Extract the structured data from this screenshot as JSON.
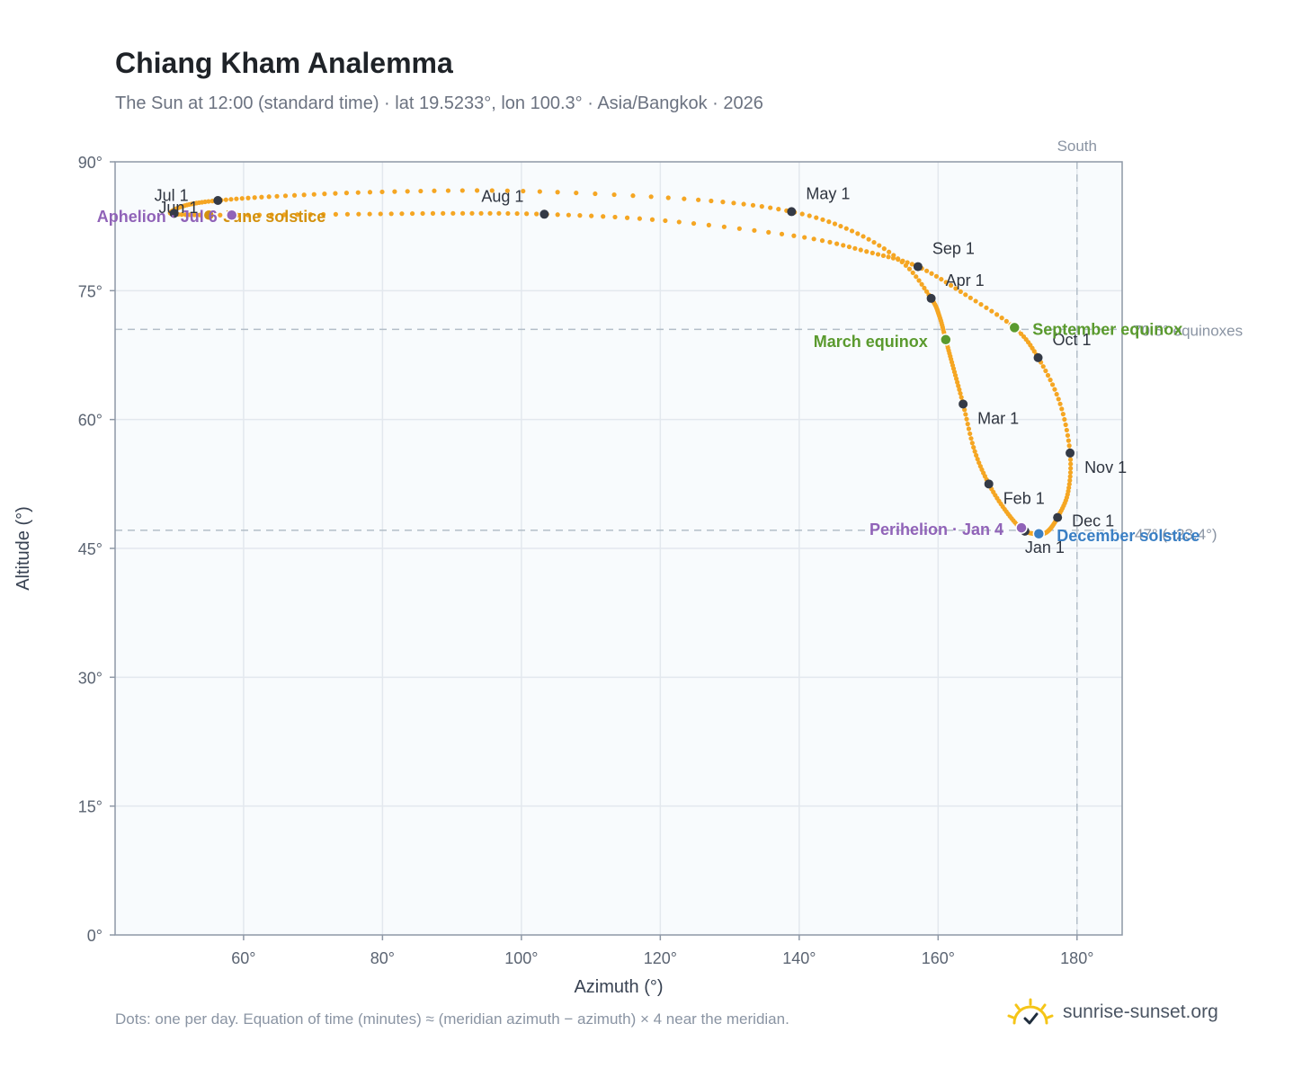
{
  "header": {
    "title": "Chiang Kham Analemma",
    "subtitle": "The Sun at 12:00 (standard time) · lat 19.5233°, lon 100.3° · Asia/Bangkok · 2026"
  },
  "footer": {
    "note": "Dots: one per day. Equation of time (minutes) ≈ (meridian azimuth − azimuth) × 4 near the meridian.",
    "brand": "sunrise-sunset.org",
    "logo_icon": "sun-logo-icon"
  },
  "colors": {
    "path": "#f5a623",
    "month_dot": "#343a46",
    "equinox": "#5a9a2e",
    "june_solstice": "#f5a623",
    "june_solstice_label": "#d4920f",
    "december_solstice": "#3a7fc4",
    "aphelion_perihelion": "#9063b8",
    "reference": "#b3bec8",
    "plot_bg": "#f8fbfd",
    "grid": "#e3e8ee",
    "axis": "#8e98a6"
  },
  "chart_data": {
    "type": "scatter",
    "title": "Chiang Kham Analemma",
    "subtitle": "The Sun at 12:00 (standard time) · lat 19.5233°, lon 100.3° · Asia/Bangkok · 2026",
    "xlabel": "Azimuth (°)",
    "ylabel": "Altitude (°)",
    "xlim": [
      41.5,
      186.5
    ],
    "ylim": [
      0,
      90
    ],
    "x_ticks": [
      60,
      80,
      100,
      120,
      140,
      160,
      180
    ],
    "x_tick_labels": [
      "60°",
      "80°",
      "100°",
      "120°",
      "140°",
      "160°",
      "180°"
    ],
    "y_ticks": [
      0,
      15,
      30,
      45,
      60,
      75,
      90
    ],
    "y_tick_labels": [
      "0°",
      "15°",
      "30°",
      "45°",
      "60°",
      "75°",
      "90°"
    ],
    "grid": true,
    "path_key_points": [
      {
        "x": 174.5,
        "y": 46.7
      },
      {
        "x": 172.3,
        "y": 47.1
      },
      {
        "x": 169.9,
        "y": 49.2
      },
      {
        "x": 167.3,
        "y": 52.5
      },
      {
        "x": 165.2,
        "y": 56.5
      },
      {
        "x": 163.6,
        "y": 61.8
      },
      {
        "x": 162.2,
        "y": 66.0
      },
      {
        "x": 161.1,
        "y": 69.3
      },
      {
        "x": 160.2,
        "y": 72.0
      },
      {
        "x": 159.0,
        "y": 74.1
      },
      {
        "x": 155.0,
        "y": 78.2
      },
      {
        "x": 148.0,
        "y": 81.8
      },
      {
        "x": 138.9,
        "y": 84.2
      },
      {
        "x": 125.0,
        "y": 85.6
      },
      {
        "x": 100.0,
        "y": 86.6
      },
      {
        "x": 80.0,
        "y": 86.5
      },
      {
        "x": 65.0,
        "y": 86.0
      },
      {
        "x": 56.3,
        "y": 85.5
      },
      {
        "x": 52.0,
        "y": 85.0
      },
      {
        "x": 49.8,
        "y": 84.3
      },
      {
        "x": 50.3,
        "y": 83.9
      },
      {
        "x": 58.0,
        "y": 83.8
      },
      {
        "x": 75.0,
        "y": 83.9
      },
      {
        "x": 90.0,
        "y": 84.0
      },
      {
        "x": 103.3,
        "y": 83.9
      },
      {
        "x": 120.0,
        "y": 83.2
      },
      {
        "x": 140.0,
        "y": 81.3
      },
      {
        "x": 150.0,
        "y": 79.5
      },
      {
        "x": 157.1,
        "y": 77.8
      },
      {
        "x": 164.0,
        "y": 74.5
      },
      {
        "x": 171.0,
        "y": 70.7
      },
      {
        "x": 174.4,
        "y": 67.2
      },
      {
        "x": 177.5,
        "y": 62.0
      },
      {
        "x": 179.0,
        "y": 56.1
      },
      {
        "x": 178.7,
        "y": 51.5
      },
      {
        "x": 177.2,
        "y": 48.6
      },
      {
        "x": 175.8,
        "y": 47.0
      },
      {
        "x": 174.5,
        "y": 46.7
      }
    ],
    "months": [
      {
        "label": "Jan 1",
        "x": 172.5,
        "y": 47.0
      },
      {
        "label": "Feb 1",
        "x": 167.3,
        "y": 52.5
      },
      {
        "label": "Mar 1",
        "x": 163.6,
        "y": 61.8
      },
      {
        "label": "Apr 1",
        "x": 159.0,
        "y": 74.1
      },
      {
        "label": "May 1",
        "x": 138.9,
        "y": 84.2
      },
      {
        "label": "Jun 1",
        "x": 56.3,
        "y": 85.5
      },
      {
        "label": "Jul 1",
        "x": 50.0,
        "y": 84.0
      },
      {
        "label": "Aug 1",
        "x": 103.3,
        "y": 83.9
      },
      {
        "label": "Sep 1",
        "x": 157.1,
        "y": 77.8
      },
      {
        "label": "Oct 1",
        "x": 174.4,
        "y": 67.2
      },
      {
        "label": "Nov 1",
        "x": 179.0,
        "y": 56.1
      },
      {
        "label": "Dec 1",
        "x": 177.2,
        "y": 48.6
      }
    ],
    "events": [
      {
        "label": "March equinox",
        "x": 161.1,
        "y": 69.3,
        "color": "equinox"
      },
      {
        "label": "September equinox",
        "x": 171.0,
        "y": 70.7,
        "color": "equinox"
      },
      {
        "label": "June solstice",
        "x": 55.0,
        "y": 83.8,
        "color": "june_solstice_label"
      },
      {
        "label": "December solstice",
        "x": 174.5,
        "y": 46.7,
        "color": "december_solstice"
      },
      {
        "label": "Aphelion · Jul 6",
        "x": 58.3,
        "y": 83.8,
        "color": "aphelion_perihelion"
      },
      {
        "label": "Perihelion · Jan 4",
        "x": 172.0,
        "y": 47.4,
        "color": "aphelion_perihelion"
      }
    ],
    "reference_lines": {
      "south_azimuth": 180,
      "south_label": "South",
      "equinox_altitude": 70.5,
      "equinox_label": "70.5° equinoxes",
      "december_altitude": 47.1,
      "december_label": "47° (−23.4°)"
    }
  }
}
